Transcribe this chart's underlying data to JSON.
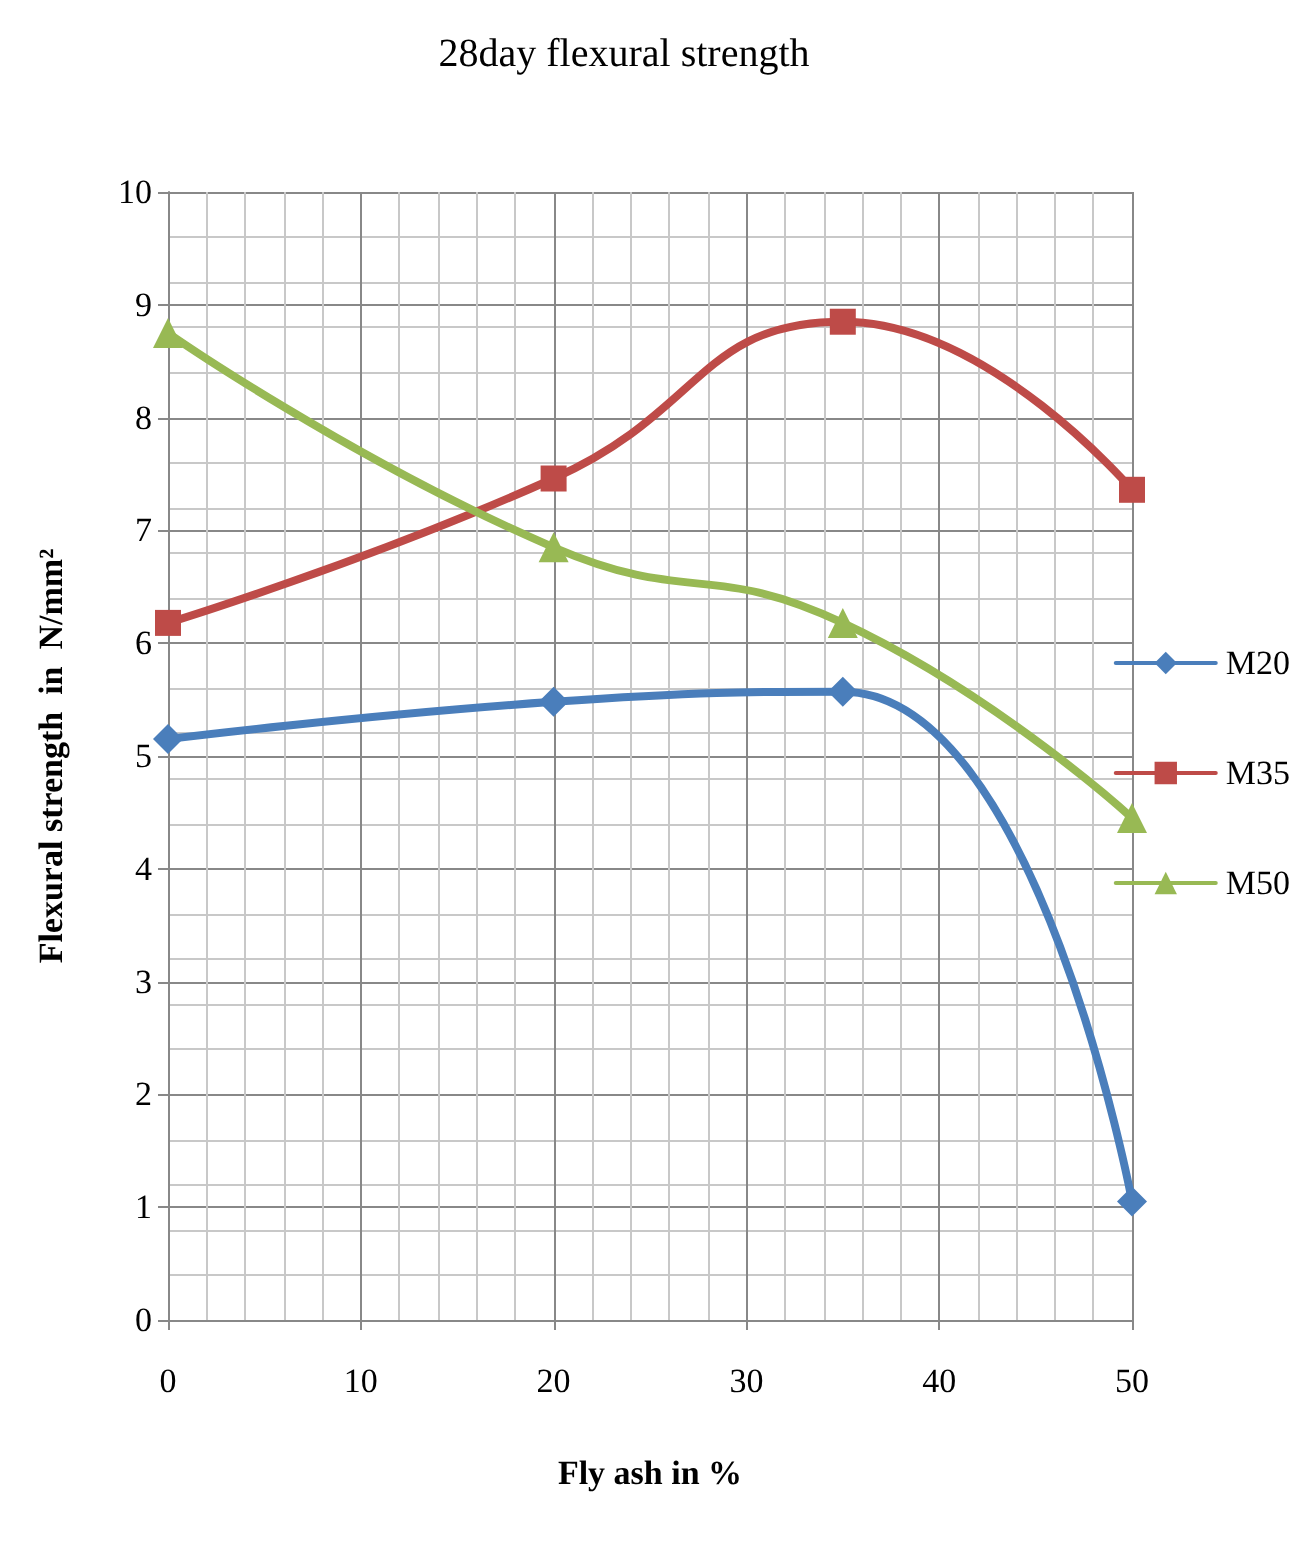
{
  "chart_data": {
    "type": "line",
    "title": "28day flexural strength",
    "xlabel": "Fly ash in %",
    "ylabel": "Flexural strength  in  N/mm²",
    "x": [
      0,
      20,
      35,
      50
    ],
    "series": [
      {
        "name": "M20",
        "color": "#4a7ebb",
        "marker": "diamond",
        "values": [
          5.15,
          5.48,
          5.57,
          1.05
        ]
      },
      {
        "name": "M35",
        "color": "#be4b48",
        "marker": "square",
        "values": [
          6.18,
          7.46,
          8.85,
          7.36
        ]
      },
      {
        "name": "M50",
        "color": "#98b954",
        "marker": "triangle",
        "values": [
          8.75,
          6.85,
          6.18,
          4.45
        ]
      }
    ],
    "xlim": [
      0,
      50
    ],
    "xticks": [
      0,
      10,
      20,
      30,
      40,
      50
    ],
    "ylim": [
      0,
      10
    ],
    "yticks": [
      0,
      1,
      2,
      3,
      4,
      5,
      6,
      7,
      8,
      9,
      10
    ],
    "grid": true,
    "legend": "right",
    "line_style": "solid"
  }
}
